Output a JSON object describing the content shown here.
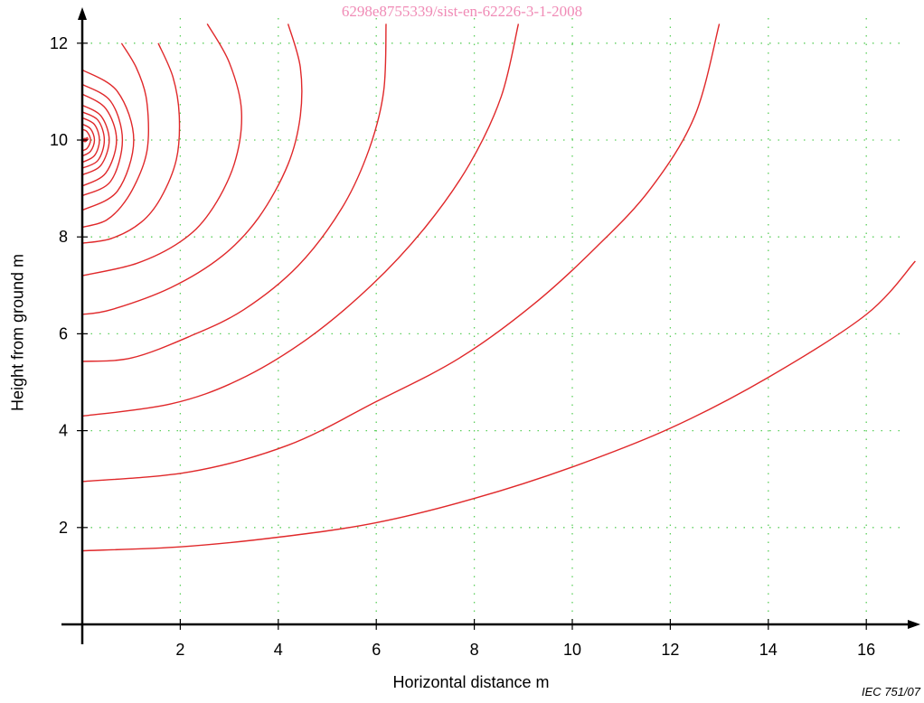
{
  "watermark": "6298e8755339/sist-en-62226-3-1-2008",
  "figure_ref": "IEC 751/07",
  "colors": {
    "curve": "#e0282a",
    "grid": "#5ccf5c",
    "axis": "#000000",
    "watermark": "#f08bb6"
  },
  "chart_data": {
    "type": "line",
    "title": "",
    "xlabel": "Horizontal distance   m",
    "ylabel": "Height from ground   m",
    "xlim": [
      0,
      17
    ],
    "ylim": [
      0,
      12.5
    ],
    "xticks": [
      2,
      4,
      6,
      8,
      10,
      12,
      14,
      16
    ],
    "yticks": [
      2,
      4,
      6,
      8,
      10,
      12
    ],
    "grid": true,
    "source_point": [
      0,
      10
    ],
    "series": [
      {
        "x": [
          0,
          0.05,
          0.1,
          0.12
        ],
        "y": [
          10.0,
          10.0,
          10.05,
          10.0
        ]
      },
      {
        "x": [
          0,
          0.1,
          0.17,
          0.1,
          0
        ],
        "y": [
          10.22,
          10.17,
          10.0,
          9.83,
          9.78
        ]
      },
      {
        "x": [
          0,
          0.17,
          0.25,
          0.17,
          0
        ],
        "y": [
          10.33,
          10.23,
          10.0,
          9.77,
          9.67
        ]
      },
      {
        "x": [
          0,
          0.25,
          0.35,
          0.25,
          0
        ],
        "y": [
          10.46,
          10.32,
          10.0,
          9.68,
          9.54
        ]
      },
      {
        "x": [
          0,
          0.32,
          0.45,
          0.32,
          0
        ],
        "y": [
          10.58,
          10.41,
          10.0,
          9.58,
          9.42
        ]
      },
      {
        "x": [
          0,
          0.38,
          0.55,
          0.38,
          0
        ],
        "y": [
          10.72,
          10.5,
          10.0,
          9.48,
          9.28
        ]
      },
      {
        "x": [
          0,
          0.48,
          0.7,
          0.48,
          0
        ],
        "y": [
          10.95,
          10.65,
          10.0,
          9.32,
          9.05
        ]
      },
      {
        "x": [
          0,
          0.58,
          0.82,
          0.58,
          0
        ],
        "y": [
          11.15,
          10.8,
          10.0,
          9.15,
          8.85
        ]
      },
      {
        "x": [
          0,
          0.72,
          1.05,
          0.72,
          0
        ],
        "y": [
          11.45,
          11.0,
          10.0,
          8.95,
          8.55
        ]
      },
      {
        "x": [
          0.8,
          1.1,
          1.3,
          1.35,
          1.25,
          0.92,
          0.5,
          0
        ],
        "y": [
          12.0,
          11.5,
          10.9,
          10.1,
          9.5,
          8.8,
          8.35,
          8.2
        ]
      },
      {
        "x": [
          1.55,
          1.85,
          1.98,
          1.92,
          1.6,
          1.2,
          0.6,
          0
        ],
        "y": [
          12.0,
          11.3,
          10.5,
          9.6,
          8.8,
          8.3,
          7.97,
          7.87
        ]
      },
      {
        "x": [
          2.55,
          3.0,
          3.25,
          3.1,
          2.6,
          2.0,
          1.1,
          0
        ],
        "y": [
          12.4,
          11.6,
          10.6,
          9.5,
          8.5,
          7.9,
          7.45,
          7.2
        ]
      },
      {
        "x": [
          4.2,
          4.45,
          4.45,
          4.2,
          3.6,
          2.85,
          1.8,
          0.6,
          0
        ],
        "y": [
          12.4,
          11.5,
          10.5,
          9.5,
          8.4,
          7.6,
          6.95,
          6.5,
          6.4
        ]
      },
      {
        "x": [
          6.2,
          6.15,
          5.85,
          5.3,
          4.4,
          3.3,
          2.2,
          1.0,
          0
        ],
        "y": [
          12.4,
          11.0,
          9.8,
          8.6,
          7.4,
          6.5,
          5.95,
          5.5,
          5.43
        ]
      },
      {
        "x": [
          8.9,
          8.55,
          7.9,
          7.0,
          5.9,
          4.6,
          3.2,
          1.8,
          0
        ],
        "y": [
          12.4,
          10.9,
          9.5,
          8.2,
          7.0,
          5.9,
          5.05,
          4.55,
          4.3
        ]
      },
      {
        "x": [
          13.0,
          12.5,
          11.6,
          10.5,
          9.2,
          7.7,
          6.0,
          4.2,
          2.2,
          0
        ],
        "y": [
          12.4,
          10.5,
          9.0,
          7.8,
          6.6,
          5.5,
          4.6,
          3.7,
          3.15,
          2.95
        ]
      },
      {
        "x": [
          17.0,
          16.0,
          14.0,
          12.0,
          10.0,
          8.0,
          6.0,
          4.0,
          2.0,
          0
        ],
        "y": [
          7.5,
          6.4,
          5.1,
          4.05,
          3.25,
          2.6,
          2.1,
          1.8,
          1.6,
          1.52
        ]
      }
    ]
  }
}
